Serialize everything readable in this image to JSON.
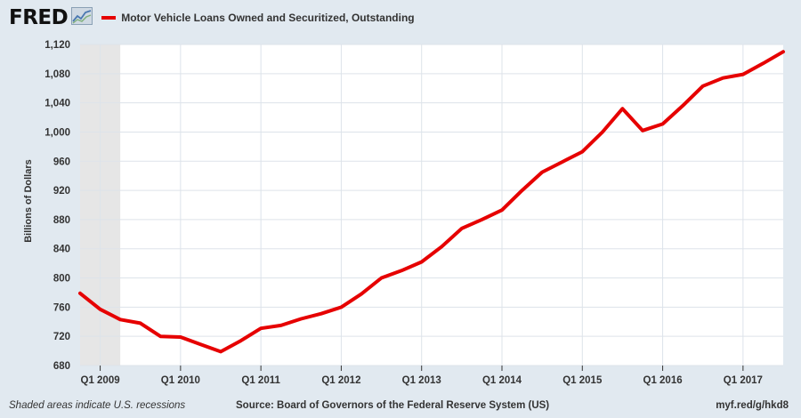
{
  "header": {
    "logo_text": "FRED",
    "legend_label": "Motor Vehicle Loans Owned and Securitized, Outstanding"
  },
  "footer": {
    "recession_note": "Shaded areas indicate U.S. recessions",
    "source": "Source: Board of Governors of the Federal Reserve System (US)",
    "short_url": "myf.red/g/hkd8"
  },
  "colors": {
    "line": "#e60000",
    "plot_bg": "#ffffff",
    "page_bg": "#e1e9f0",
    "recession": "#e6e6e6",
    "grid": "#dde3ea"
  },
  "chart_data": {
    "type": "line",
    "title": "",
    "xlabel": "",
    "ylabel": "Billions of Dollars",
    "ylim": [
      680,
      1120
    ],
    "yticks": [
      680,
      720,
      760,
      800,
      840,
      880,
      920,
      960,
      1000,
      1040,
      1080,
      1120
    ],
    "ytick_labels": [
      "680",
      "720",
      "760",
      "800",
      "840",
      "880",
      "920",
      "960",
      "1,000",
      "1,040",
      "1,080",
      "1,120"
    ],
    "xlim": [
      "2008 Q4",
      "2017 Q3"
    ],
    "xticks": [
      "2009 Q1",
      "2010 Q1",
      "2011 Q1",
      "2012 Q1",
      "2013 Q1",
      "2014 Q1",
      "2015 Q1",
      "2016 Q1",
      "2017 Q1"
    ],
    "xtick_labels": [
      "Q1 2009",
      "Q1 2010",
      "Q1 2011",
      "Q1 2012",
      "Q1 2013",
      "Q1 2014",
      "Q1 2015",
      "Q1 2016",
      "Q1 2017"
    ],
    "recessions": [
      {
        "start": "2008 Q4",
        "end": "2009 Q2"
      }
    ],
    "grid": true,
    "series": [
      {
        "name": "Motor Vehicle Loans Owned and Securitized, Outstanding",
        "x": [
          "2008 Q4",
          "2009 Q1",
          "2009 Q2",
          "2009 Q3",
          "2009 Q4",
          "2010 Q1",
          "2010 Q2",
          "2010 Q3",
          "2010 Q4",
          "2011 Q1",
          "2011 Q2",
          "2011 Q3",
          "2011 Q4",
          "2012 Q1",
          "2012 Q2",
          "2012 Q3",
          "2012 Q4",
          "2013 Q1",
          "2013 Q2",
          "2013 Q3",
          "2013 Q4",
          "2014 Q1",
          "2014 Q2",
          "2014 Q3",
          "2014 Q4",
          "2015 Q1",
          "2015 Q2",
          "2015 Q3",
          "2015 Q4",
          "2016 Q1",
          "2016 Q2",
          "2016 Q3",
          "2016 Q4",
          "2017 Q1",
          "2017 Q2",
          "2017 Q3"
        ],
        "values": [
          779,
          757,
          743,
          738,
          720,
          719,
          709,
          699,
          714,
          731,
          735,
          744,
          751,
          760,
          778,
          800,
          810,
          822,
          843,
          868,
          880,
          893,
          920,
          945,
          959,
          973,
          1000,
          1032,
          1002,
          1011,
          1036,
          1063,
          1074,
          1079,
          1094,
          1110
        ]
      }
    ]
  }
}
